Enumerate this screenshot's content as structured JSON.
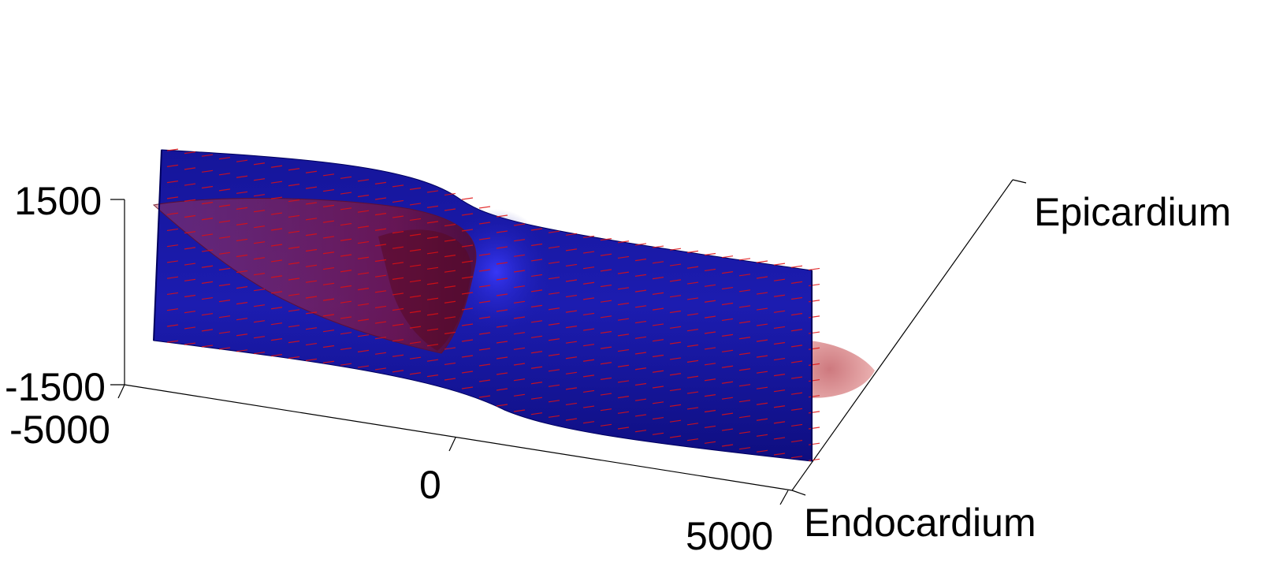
{
  "axes": {
    "z_ticks": {
      "top": "1500",
      "bottom": "-1500"
    },
    "x_ticks": {
      "left": "-5000",
      "middle": "0",
      "right": "5000"
    },
    "surface_labels": {
      "epicardium": "Epicardium",
      "endocardium": "Endocardium"
    }
  },
  "colors": {
    "tissue_surface": "#1a1a9e",
    "tissue_surface_edge": "#00005e",
    "conduction_vectors": "#e01010",
    "activation_front": "#b03040",
    "background": "#ffffff",
    "axis_lines": "#000000"
  },
  "scene": {
    "vector_field": "red arrows across the tissue slab",
    "isosurface": "translucent red wavefront"
  }
}
